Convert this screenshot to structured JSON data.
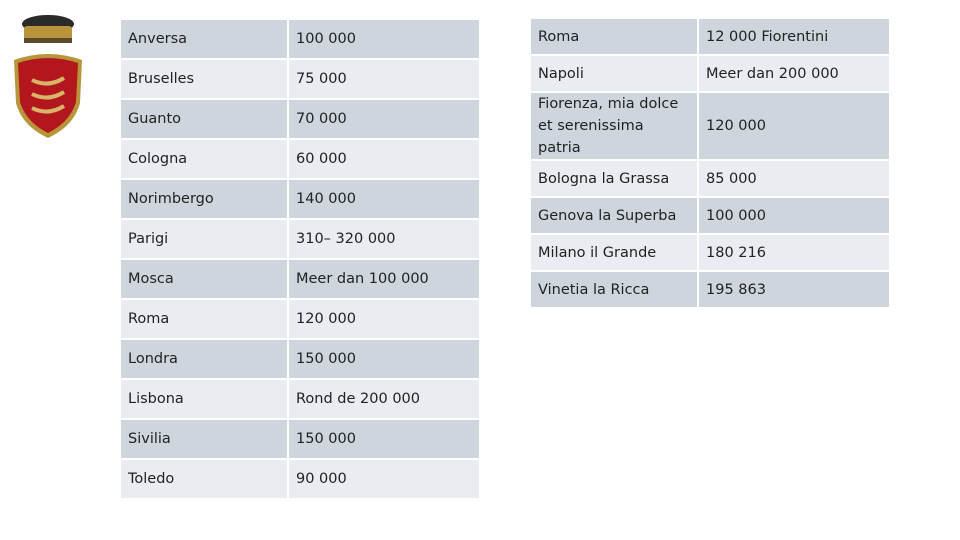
{
  "left_table": [
    [
      "Anversa",
      "100 000"
    ],
    [
      "Bruselles",
      "75 000"
    ],
    [
      "Guanto",
      "70 000"
    ],
    [
      "Cologna",
      "60 000"
    ],
    [
      "Norimbergo",
      "140 000"
    ],
    [
      "Parigi",
      "310– 320 000"
    ],
    [
      "Mosca",
      "Meer dan 100 000"
    ],
    [
      "Roma",
      "120 000"
    ],
    [
      "Londra",
      "150 000"
    ],
    [
      "Lisbona",
      "Rond de 200 000"
    ],
    [
      "Sivilia",
      "150 000"
    ],
    [
      "Toledo",
      "90 000"
    ]
  ],
  "right_table": [
    [
      "Roma",
      "12 000 Fiorentini"
    ],
    [
      "Napoli",
      "Meer dan 200 000"
    ],
    [
      "Fiorenza, mia dolce et serenissima patria",
      "120 000"
    ],
    [
      "Bologna la Grassa",
      "85 000"
    ],
    [
      "Genova  la Superba",
      "100 000"
    ],
    [
      "Milano il Grande",
      "180 216"
    ],
    [
      "Vinetia la Ricca",
      "195 863"
    ]
  ],
  "colors": {
    "row_dark": "#cfd5dd",
    "row_light": "#e9ecf0",
    "shield_red": "#b3161c",
    "gold": "#b8953a"
  },
  "crest": {
    "icon": "coat-of-arms-icon"
  }
}
